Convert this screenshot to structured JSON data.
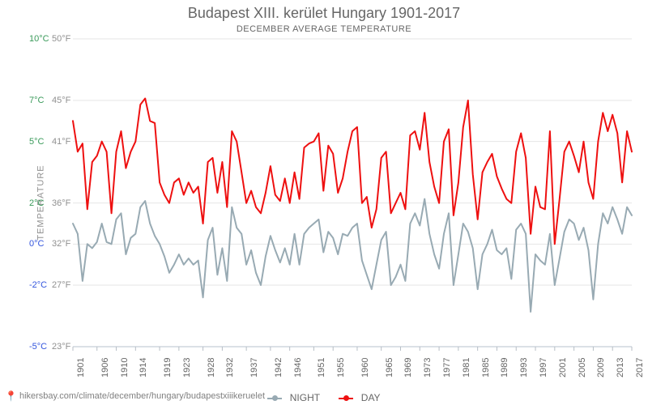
{
  "title": "Budapest XIII. kerület Hungary 1901-2017",
  "subtitle": "DECEMBER AVERAGE TEMPERATURE",
  "yaxis_label": "TEMPERATURE",
  "credit": "hikersbay.com/climate/december/hungary/budapestxiiikeruelet",
  "chart": {
    "type": "line",
    "background_color": "#ffffff",
    "grid_color": "#e6e6e6",
    "baseline_color": "#cfd6dd",
    "title_color": "#666666",
    "title_fontsize": 18,
    "subtitle_fontsize": 11,
    "ylim_c": [
      -5,
      10
    ],
    "xlim": [
      1901,
      2017
    ],
    "yticks": [
      {
        "c": -5,
        "c_label": "-5°C",
        "f_label": "23°F",
        "color": "#3355dd"
      },
      {
        "c": -2,
        "c_label": "-2°C",
        "f_label": "27°F",
        "color": "#3355dd"
      },
      {
        "c": 0,
        "c_label": "0°C",
        "f_label": "32°F",
        "color": "#3355dd"
      },
      {
        "c": 2,
        "c_label": "2°C",
        "f_label": "36°F",
        "color": "#3a9a5a"
      },
      {
        "c": 5,
        "c_label": "5°C",
        "f_label": "41°F",
        "color": "#3a9a5a"
      },
      {
        "c": 7,
        "c_label": "7°C",
        "f_label": "45°F",
        "color": "#3a9a5a"
      },
      {
        "c": 10,
        "c_label": "10°C",
        "f_label": "50°F",
        "color": "#3a9a5a"
      }
    ],
    "xticks": [
      1901,
      1906,
      1910,
      1914,
      1919,
      1923,
      1928,
      1932,
      1937,
      1942,
      1946,
      1951,
      1955,
      1960,
      1965,
      1969,
      1973,
      1977,
      1981,
      1985,
      1989,
      1993,
      1997,
      2001,
      2005,
      2009,
      2013,
      2017
    ],
    "series": [
      {
        "name": "NIGHT",
        "color": "#98aab3",
        "line_width": 2,
        "marker": "circle",
        "marker_size": 3,
        "values": [
          1.0,
          0.5,
          -1.8,
          0.0,
          -0.2,
          0.1,
          1.0,
          0.1,
          0.0,
          1.2,
          1.5,
          -0.5,
          0.3,
          0.5,
          1.8,
          2.1,
          1.0,
          0.4,
          0.0,
          -0.6,
          -1.4,
          -1.0,
          -0.5,
          -1.0,
          -0.7,
          -1.0,
          -0.8,
          -2.6,
          0.2,
          0.8,
          -1.5,
          -0.2,
          -1.8,
          1.8,
          0.8,
          0.5,
          -1.0,
          -0.3,
          -1.4,
          -2.0,
          -0.6,
          0.4,
          -0.3,
          -0.9,
          -0.2,
          -1.0,
          0.5,
          -1.0,
          0.5,
          0.8,
          1.0,
          1.2,
          -0.4,
          0.6,
          0.3,
          -0.5,
          0.5,
          0.4,
          0.8,
          1.0,
          -0.8,
          -1.5,
          -2.2,
          -1.0,
          0.2,
          0.6,
          -2.0,
          -1.6,
          -1.0,
          -1.8,
          1.0,
          1.5,
          0.9,
          2.2,
          0.5,
          -0.5,
          -1.2,
          0.5,
          1.5,
          -2.0,
          -0.5,
          1.0,
          0.6,
          -0.2,
          -2.2,
          -0.5,
          0.0,
          0.7,
          -0.3,
          -0.5,
          -0.2,
          -1.7,
          0.7,
          1.0,
          0.5,
          -3.3,
          -0.5,
          -0.8,
          -1.0,
          0.5,
          -2.0,
          -0.7,
          0.6,
          1.2,
          1.0,
          0.2,
          0.8,
          -0.3,
          -2.7,
          0.0,
          1.5,
          1.0,
          1.8,
          1.2,
          0.5,
          1.8,
          1.4
        ],
        "years_start": 1901
      },
      {
        "name": "DAY",
        "color": "#ee1010",
        "line_width": 2,
        "marker": "circle",
        "marker_size": 3,
        "values": [
          6.0,
          4.5,
          4.9,
          1.7,
          4.0,
          4.3,
          5.0,
          4.5,
          1.5,
          4.5,
          5.5,
          3.7,
          4.5,
          5.0,
          6.8,
          7.1,
          6.0,
          5.9,
          3.0,
          2.4,
          2.0,
          3.0,
          3.2,
          2.4,
          3.0,
          2.5,
          2.8,
          1.0,
          4.0,
          4.2,
          2.5,
          4.0,
          1.8,
          5.5,
          5.0,
          3.5,
          2.0,
          2.6,
          1.8,
          1.5,
          2.5,
          3.8,
          2.4,
          2.1,
          3.2,
          2.0,
          3.5,
          2.2,
          4.7,
          4.9,
          5.0,
          5.4,
          2.6,
          4.8,
          4.4,
          2.5,
          3.2,
          4.5,
          5.5,
          5.7,
          2.0,
          2.3,
          0.8,
          1.7,
          4.2,
          4.5,
          1.5,
          2.0,
          2.5,
          1.7,
          5.3,
          5.5,
          4.6,
          6.4,
          4.0,
          2.8,
          2.0,
          5.0,
          5.6,
          1.4,
          3.0,
          5.7,
          7.0,
          3.4,
          1.2,
          3.5,
          4.0,
          4.4,
          3.3,
          2.7,
          2.2,
          2.0,
          4.5,
          5.4,
          4.2,
          0.5,
          2.8,
          1.8,
          1.7,
          5.5,
          0.0,
          2.2,
          4.5,
          5.0,
          4.3,
          3.5,
          5.0,
          3.0,
          2.2,
          5.0,
          6.4,
          5.5,
          6.3,
          5.4,
          3.0,
          5.5,
          4.5
        ],
        "years_start": 1901
      }
    ],
    "legend": {
      "items": [
        "NIGHT",
        "DAY"
      ],
      "position": "bottom-center",
      "fontsize": 12
    }
  }
}
